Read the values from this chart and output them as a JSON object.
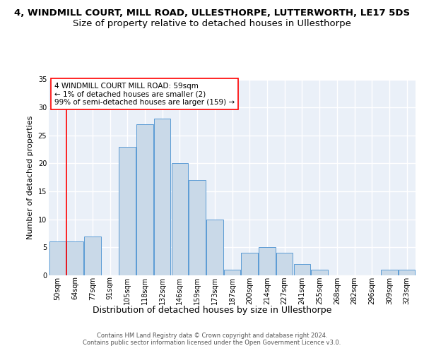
{
  "title": "4, WINDMILL COURT, MILL ROAD, ULLESTHORPE, LUTTERWORTH, LE17 5DS",
  "subtitle": "Size of property relative to detached houses in Ullesthorpe",
  "xlabel": "Distribution of detached houses by size in Ullesthorpe",
  "ylabel": "Number of detached properties",
  "bin_labels": [
    "50sqm",
    "64sqm",
    "77sqm",
    "91sqm",
    "105sqm",
    "118sqm",
    "132sqm",
    "146sqm",
    "159sqm",
    "173sqm",
    "187sqm",
    "200sqm",
    "214sqm",
    "227sqm",
    "241sqm",
    "255sqm",
    "268sqm",
    "282sqm",
    "296sqm",
    "309sqm",
    "323sqm"
  ],
  "bar_values": [
    6,
    6,
    7,
    0,
    23,
    27,
    28,
    20,
    17,
    10,
    1,
    4,
    5,
    4,
    2,
    1,
    0,
    0,
    0,
    1,
    1
  ],
  "bar_color": "#c9d9e8",
  "bar_edge_color": "#5b9bd5",
  "annotation_text": "4 WINDMILL COURT MILL ROAD: 59sqm\n← 1% of detached houses are smaller (2)\n99% of semi-detached houses are larger (159) →",
  "vline_x_index": 1,
  "ylim": [
    0,
    35
  ],
  "background_color": "#eaf0f8",
  "grid_color": "#ffffff",
  "footer_text": "Contains HM Land Registry data © Crown copyright and database right 2024.\nContains public sector information licensed under the Open Government Licence v3.0.",
  "title_fontsize": 9.5,
  "subtitle_fontsize": 9.5,
  "xlabel_fontsize": 9,
  "ylabel_fontsize": 8,
  "tick_fontsize": 7,
  "annotation_fontsize": 7.5,
  "footer_fontsize": 6
}
